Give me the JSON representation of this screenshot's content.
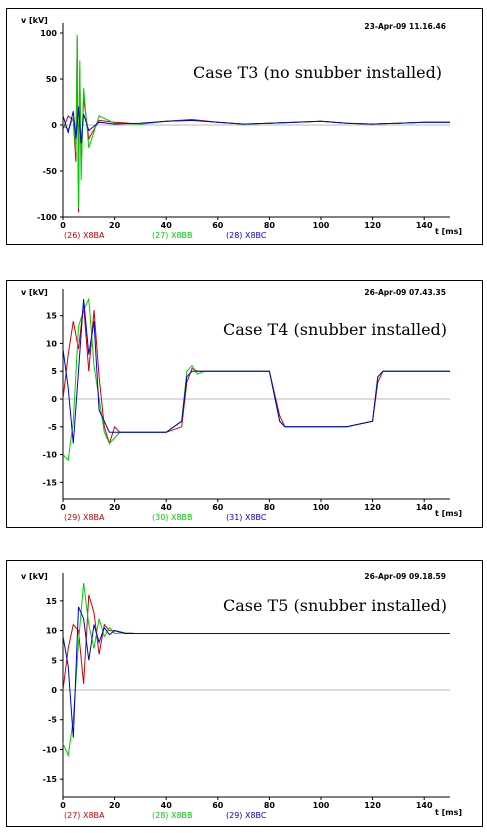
{
  "chart_data": [
    {
      "type": "line",
      "title": "Case T3 (no snubber installed)",
      "timestamp": "23-Apr-09  11.16.46",
      "ylabel": "v [kV]",
      "xlabel": "t [ms]",
      "xlim": [
        0,
        150
      ],
      "ylim": [
        -100,
        100
      ],
      "yticks": [
        "100",
        "50",
        "0",
        "-50",
        "-100"
      ],
      "xticks": [
        "0",
        "20",
        "40",
        "60",
        "80",
        "100",
        "120",
        "140"
      ],
      "grid": false,
      "series": [
        {
          "name": "(26)  X8BA",
          "color": "#cc0000",
          "x": [
            0,
            2,
            4,
            5,
            5.5,
            6,
            6.5,
            7,
            8,
            10,
            14,
            20,
            30,
            40,
            50,
            60,
            70,
            80,
            90,
            100,
            110,
            120,
            130,
            140,
            150
          ],
          "y": [
            -5,
            10,
            5,
            -40,
            95,
            -95,
            60,
            -50,
            30,
            -15,
            5,
            3,
            1,
            4,
            6,
            3,
            1,
            2,
            3,
            4,
            2,
            1,
            2,
            3,
            3
          ]
        },
        {
          "name": "(27)  X8BB",
          "color": "#00cc00",
          "x": [
            0,
            2,
            4,
            5,
            5.5,
            6,
            6.5,
            7,
            8,
            10,
            14,
            20,
            30,
            40,
            50,
            60,
            70,
            80,
            90,
            100,
            110,
            120,
            130,
            140,
            150
          ],
          "y": [
            0,
            -5,
            8,
            -30,
            98,
            -90,
            70,
            -60,
            40,
            -25,
            10,
            2,
            1,
            4,
            5,
            3,
            1,
            2,
            3,
            4,
            2,
            1,
            2,
            3,
            3
          ]
        },
        {
          "name": "(28)  X8BC",
          "color": "#0000cc",
          "x": [
            0,
            2,
            4,
            5,
            6,
            7,
            8,
            10,
            14,
            20,
            30,
            40,
            50,
            60,
            70,
            80,
            90,
            100,
            110,
            120,
            130,
            140,
            150
          ],
          "y": [
            10,
            -8,
            15,
            -15,
            20,
            -20,
            12,
            -6,
            3,
            1,
            2,
            4,
            5,
            3,
            1,
            2,
            3,
            4,
            2,
            1,
            2,
            3,
            3
          ]
        }
      ]
    },
    {
      "type": "line",
      "title": "Case T4 (snubber installed)",
      "timestamp": "26-Apr-09  07.43.35",
      "ylabel": "v [kV]",
      "xlabel": "t [ms]",
      "xlim": [
        0,
        150
      ],
      "ylim": [
        -18,
        18
      ],
      "yticks": [
        "15",
        "10",
        "5",
        "0",
        "-5",
        "-10",
        "-15"
      ],
      "xticks": [
        "0",
        "20",
        "40",
        "60",
        "80",
        "100",
        "120",
        "140"
      ],
      "grid": false,
      "series": [
        {
          "name": "(29)  X8BA",
          "color": "#cc0000",
          "x": [
            0,
            2,
            4,
            6,
            8,
            10,
            12,
            14,
            16,
            18,
            20,
            22,
            24,
            30,
            40,
            46,
            48,
            50,
            52,
            55,
            60,
            70,
            80,
            84,
            86,
            90,
            100,
            110,
            120,
            122,
            124,
            130,
            140,
            150
          ],
          "y": [
            0,
            8,
            14,
            9,
            17,
            5,
            16,
            4,
            -5,
            -8,
            -5,
            -6,
            -6,
            -6,
            -6,
            -5,
            3,
            5.5,
            5,
            5,
            5,
            5,
            5,
            -3,
            -5,
            -5,
            -5,
            -5,
            -4,
            3,
            5,
            5,
            5,
            5
          ]
        },
        {
          "name": "(30)  X8BB",
          "color": "#00cc00",
          "x": [
            0,
            2,
            4,
            6,
            8,
            10,
            12,
            14,
            16,
            18,
            20,
            22,
            24,
            30,
            40,
            46,
            48,
            50,
            52,
            55,
            60,
            70,
            80,
            84,
            86,
            90,
            100,
            110,
            120,
            122,
            124,
            130,
            140,
            150
          ],
          "y": [
            -10,
            -11,
            -4,
            13,
            16,
            18,
            6,
            0,
            -6,
            -8,
            -7,
            -6,
            -6,
            -6,
            -6,
            -4,
            5,
            6,
            4.5,
            5,
            5,
            5,
            5,
            -4,
            -5,
            -5,
            -5,
            -5,
            -4,
            4,
            5,
            5,
            5,
            5
          ]
        },
        {
          "name": "(31)  X8BC",
          "color": "#0000cc",
          "x": [
            0,
            2,
            4,
            6,
            8,
            10,
            12,
            14,
            16,
            18,
            20,
            22,
            24,
            30,
            40,
            46,
            48,
            50,
            52,
            55,
            60,
            70,
            80,
            84,
            86,
            90,
            100,
            110,
            120,
            122,
            124,
            130,
            140,
            150
          ],
          "y": [
            9,
            2,
            -8,
            5,
            18,
            8,
            14,
            -2,
            -4,
            -6,
            -6,
            -6,
            -6,
            -6,
            -6,
            -4,
            4,
            5,
            5,
            5,
            5,
            5,
            5,
            -4,
            -5,
            -5,
            -5,
            -5,
            -4,
            4,
            5,
            5,
            5,
            5
          ]
        }
      ]
    },
    {
      "type": "line",
      "title": "Case T5 (snubber installed)",
      "timestamp": "26-Apr-09  09.18.59",
      "ylabel": "v [kV]",
      "xlabel": "t [ms]",
      "xlim": [
        0,
        150
      ],
      "ylim": [
        -18,
        18
      ],
      "yticks": [
        "15",
        "10",
        "5",
        "0",
        "-5",
        "-10",
        "-15"
      ],
      "xticks": [
        "0",
        "20",
        "40",
        "60",
        "80",
        "100",
        "120",
        "140"
      ],
      "grid": false,
      "series": [
        {
          "name": "(27)  X8BA",
          "color": "#cc0000",
          "x": [
            0,
            2,
            4,
            6,
            8,
            10,
            12,
            14,
            16,
            18,
            20,
            24,
            28,
            40,
            60,
            80,
            100,
            120,
            140,
            150
          ],
          "y": [
            0,
            7,
            11,
            10,
            1,
            16,
            13,
            6,
            11,
            10,
            10,
            9.6,
            9.5,
            9.5,
            9.5,
            9.5,
            9.5,
            9.5,
            9.5,
            9.5
          ]
        },
        {
          "name": "(28)  X8BB",
          "color": "#00cc00",
          "x": [
            0,
            2,
            4,
            6,
            8,
            10,
            12,
            14,
            16,
            18,
            20,
            24,
            28,
            40,
            60,
            80,
            100,
            120,
            140,
            150
          ],
          "y": [
            -9,
            -11,
            -5,
            8,
            18,
            11,
            7,
            12,
            9,
            10.5,
            9.5,
            9.6,
            9.5,
            9.5,
            9.5,
            9.5,
            9.5,
            9.5,
            9.5,
            9.5
          ]
        },
        {
          "name": "(29)  X8BC",
          "color": "#0000cc",
          "x": [
            0,
            2,
            4,
            6,
            8,
            10,
            12,
            14,
            16,
            18,
            20,
            24,
            28,
            40,
            60,
            80,
            100,
            120,
            140,
            150
          ],
          "y": [
            9,
            4,
            -8,
            14,
            12,
            5,
            11,
            8,
            10.5,
            9.3,
            10,
            9.5,
            9.5,
            9.5,
            9.5,
            9.5,
            9.5,
            9.5,
            9.5,
            9.5
          ]
        }
      ]
    }
  ]
}
